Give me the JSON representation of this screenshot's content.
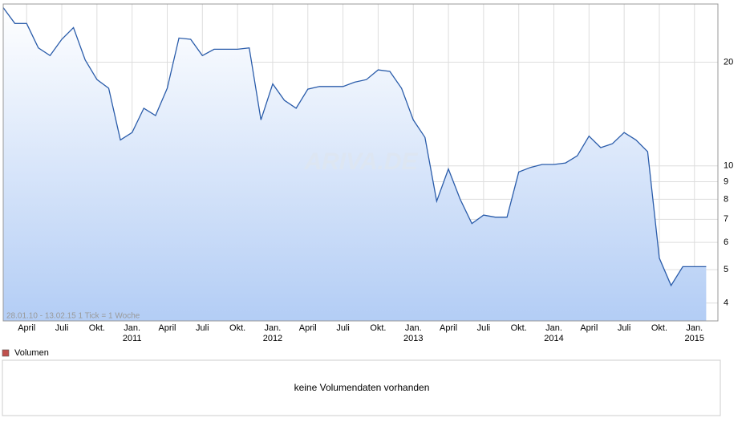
{
  "chart_data": {
    "type": "area",
    "log_y": true,
    "grid": true,
    "x": [
      "2010-02",
      "2010-03",
      "2010-04",
      "2010-05",
      "2010-06",
      "2010-07",
      "2010-08",
      "2010-09",
      "2010-10",
      "2010-11",
      "2010-12",
      "2011-01",
      "2011-02",
      "2011-03",
      "2011-04",
      "2011-05",
      "2011-06",
      "2011-07",
      "2011-08",
      "2011-09",
      "2011-10",
      "2011-11",
      "2011-12",
      "2012-01",
      "2012-02",
      "2012-03",
      "2012-04",
      "2012-05",
      "2012-06",
      "2012-07",
      "2012-08",
      "2012-09",
      "2012-10",
      "2012-11",
      "2012-12",
      "2013-01",
      "2013-02",
      "2013-03",
      "2013-04",
      "2013-05",
      "2013-06",
      "2013-07",
      "2013-08",
      "2013-09",
      "2013-10",
      "2013-11",
      "2013-12",
      "2014-01",
      "2014-02",
      "2014-03",
      "2014-04",
      "2014-05",
      "2014-06",
      "2014-07",
      "2014-08",
      "2014-09",
      "2014-10",
      "2014-11",
      "2014-12",
      "2015-01",
      "2015-02"
    ],
    "series": [
      {
        "color": "#2a5caa",
        "values": [
          28.8,
          25.9,
          25.9,
          22.0,
          20.9,
          23.3,
          25.2,
          20.3,
          17.8,
          16.8,
          11.9,
          12.5,
          14.7,
          14.0,
          16.8,
          23.5,
          23.3,
          20.9,
          21.8,
          21.8,
          21.8,
          22.0,
          13.6,
          17.3,
          15.5,
          14.7,
          16.7,
          17.0,
          17.0,
          17.0,
          17.5,
          17.8,
          19.0,
          18.8,
          16.8,
          13.6,
          12.1,
          7.9,
          9.8,
          8.0,
          6.8,
          7.2,
          7.1,
          7.1,
          9.6,
          9.9,
          10.1,
          10.1,
          10.2,
          10.7,
          12.2,
          11.3,
          11.6,
          12.5,
          11.9,
          11.0,
          5.4,
          4.5,
          5.1,
          5.1,
          5.1
        ]
      }
    ],
    "xlim": [
      "2010-02",
      "2015-03"
    ],
    "xticks": [
      {
        "value": "2010-04",
        "label": "April"
      },
      {
        "value": "2010-07",
        "label": "Juli"
      },
      {
        "value": "2010-10",
        "label": "Okt."
      },
      {
        "value": "2011-01",
        "label": "Jan."
      },
      {
        "value": "2011-04",
        "label": "April"
      },
      {
        "value": "2011-07",
        "label": "Juli"
      },
      {
        "value": "2011-10",
        "label": "Okt."
      },
      {
        "value": "2012-01",
        "label": "Jan."
      },
      {
        "value": "2012-04",
        "label": "April"
      },
      {
        "value": "2012-07",
        "label": "Juli"
      },
      {
        "value": "2012-10",
        "label": "Okt."
      },
      {
        "value": "2013-01",
        "label": "Jan."
      },
      {
        "value": "2013-04",
        "label": "April"
      },
      {
        "value": "2013-07",
        "label": "Juli"
      },
      {
        "value": "2013-10",
        "label": "Okt."
      },
      {
        "value": "2014-01",
        "label": "Jan."
      },
      {
        "value": "2014-04",
        "label": "April"
      },
      {
        "value": "2014-07",
        "label": "Juli"
      },
      {
        "value": "2014-10",
        "label": "Okt."
      },
      {
        "value": "2015-01",
        "label": "Jan."
      }
    ],
    "xtick_years": [
      {
        "value": "2011-01",
        "label": "2011"
      },
      {
        "value": "2012-01",
        "label": "2012"
      },
      {
        "value": "2013-01",
        "label": "2013"
      },
      {
        "value": "2014-01",
        "label": "2014"
      },
      {
        "value": "2015-01",
        "label": "2015"
      }
    ],
    "ylim": [
      3.55,
      29.5
    ],
    "yticks": [
      4,
      5,
      6,
      7,
      8,
      9,
      10,
      20
    ],
    "range_note": "28.01.10 - 13.02.15   1 Tick = 1 Woche",
    "watermark": "ARIVA.DE"
  },
  "volume": {
    "legend": "Volumen",
    "color": "#c0504d",
    "message": "keine Volumendaten vorhanden"
  }
}
